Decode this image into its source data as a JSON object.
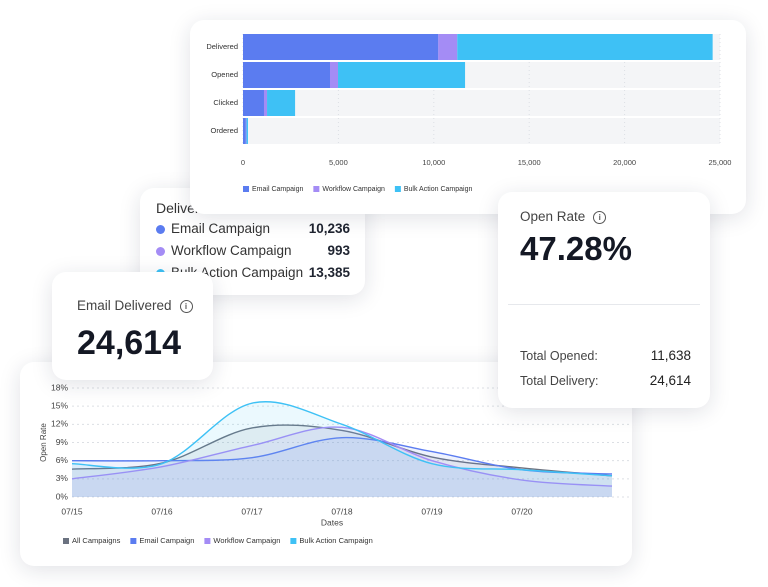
{
  "chart_data": [
    {
      "type": "bar",
      "orientation": "horizontal",
      "stacked": true,
      "categories": [
        "Delivered",
        "Opened",
        "Clicked",
        "Ordered"
      ],
      "series": [
        {
          "name": "Email Campaign",
          "color": "#5b7cf0",
          "values": [
            10236,
            4560,
            1100,
            150
          ]
        },
        {
          "name": "Workflow Campaign",
          "color": "#a48cf5",
          "values": [
            993,
            420,
            160,
            30
          ]
        },
        {
          "name": "Bulk Action Campaign",
          "color": "#3ec1f5",
          "values": [
            13385,
            6658,
            1470,
            80
          ]
        }
      ],
      "xlim": [
        0,
        25000
      ],
      "xticks": [
        0,
        {
          "value": 5000,
          "label": "5,000"
        },
        {
          "value": 10000,
          "label": "10,000"
        },
        {
          "value": 15000,
          "label": "15,000"
        },
        {
          "value": 20000,
          "label": "20,000"
        },
        {
          "value": 25000,
          "label": "25,000"
        }
      ],
      "grid": true,
      "legend": "bottom-left"
    },
    {
      "type": "line",
      "area": true,
      "categories": [
        "07/15",
        "07/16",
        "07/17",
        "07/18",
        "07/19",
        "07/20",
        null
      ],
      "series": [
        {
          "name": "All Campaigns",
          "color": "#6b7280",
          "values": [
            4.6,
            5.6,
            11.4,
            11.0,
            6.6,
            4.8,
            3.5
          ]
        },
        {
          "name": "Email Campaign",
          "color": "#5b7cf0",
          "values": [
            6.0,
            6.0,
            6.5,
            9.8,
            7.5,
            4.5,
            3.8
          ]
        },
        {
          "name": "Workflow Campaign",
          "color": "#a48cf5",
          "values": [
            3.0,
            5.0,
            8.5,
            11.5,
            6.0,
            2.8,
            1.8
          ]
        },
        {
          "name": "Bulk Action Campaign",
          "color": "#3ec1f5",
          "values": [
            5.5,
            5.5,
            15.5,
            12.0,
            5.5,
            4.5,
            3.5
          ]
        }
      ],
      "ylim": [
        0,
        18
      ],
      "yticks": [
        {
          "value": 0,
          "label": "0%"
        },
        {
          "value": 3,
          "label": "3%"
        },
        {
          "value": 6,
          "label": "6%"
        },
        {
          "value": 9,
          "label": "9%"
        },
        {
          "value": 12,
          "label": "12%"
        },
        {
          "value": 15,
          "label": "15%"
        },
        {
          "value": 18,
          "label": "18%"
        }
      ],
      "ylabel": "Open Rate",
      "xlabel": "Dates",
      "grid": true,
      "legend": "bottom-left"
    }
  ],
  "tooltip": {
    "title": "Delivered",
    "items": [
      {
        "name": "Email Campaign",
        "value": "10,236"
      },
      {
        "name": "Workflow Campaign",
        "value": "993"
      },
      {
        "name": "Bulk Action Campaign",
        "value": "13,385"
      }
    ]
  },
  "email_card": {
    "title": "Email Delivered",
    "value": "24,614"
  },
  "open_rate_card": {
    "title": "Open Rate",
    "value": "47.28%",
    "rows": [
      {
        "label": "Total Opened:",
        "value": "11,638"
      },
      {
        "label": "Total Delivery:",
        "value": "24,614"
      }
    ]
  }
}
